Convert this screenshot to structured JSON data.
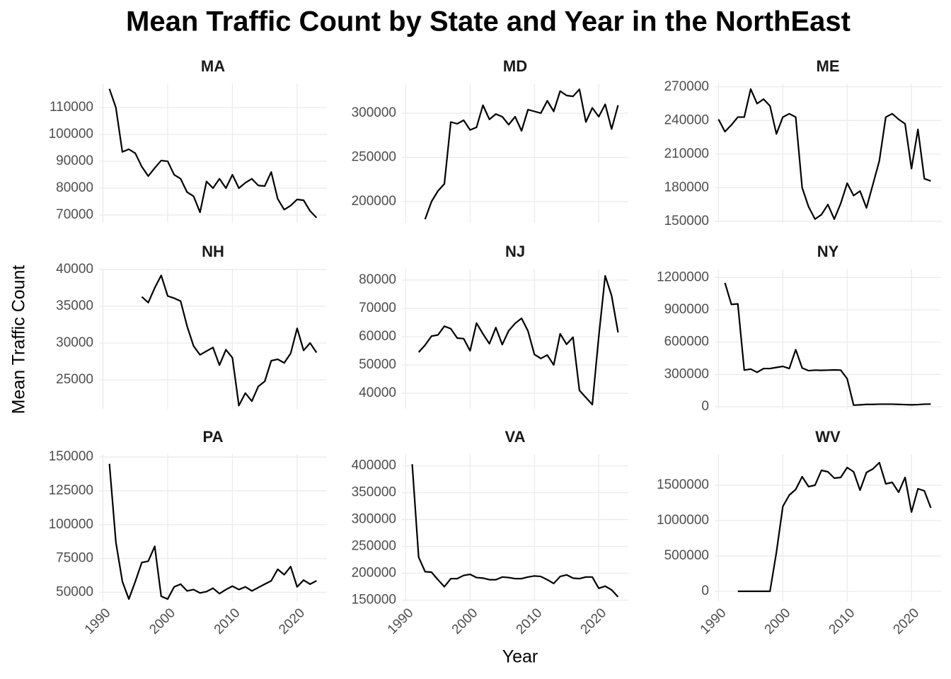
{
  "title": "Mean Traffic Count by State and Year in the NorthEast",
  "xlabel": "Year",
  "ylabel": "Mean Traffic Count",
  "xlim": [
    1989.4,
    2024.6
  ],
  "xticks": [
    1990,
    2000,
    2010,
    2020
  ],
  "grid": true,
  "chart_data": [
    {
      "type": "line",
      "title": "MA",
      "color": "#000000",
      "x": [
        1991,
        1992,
        1993,
        1994,
        1995,
        1996,
        1997,
        1998,
        1999,
        2000,
        2001,
        2002,
        2003,
        2004,
        2005,
        2006,
        2007,
        2008,
        2009,
        2010,
        2011,
        2012,
        2013,
        2014,
        2015,
        2016,
        2017,
        2018,
        2019,
        2020,
        2021,
        2022,
        2023
      ],
      "values": [
        117000,
        110000,
        93500,
        94500,
        93000,
        88000,
        84500,
        87500,
        90300,
        90000,
        85000,
        83500,
        78500,
        77000,
        71000,
        82500,
        80000,
        83500,
        80000,
        85000,
        80000,
        82000,
        83500,
        81000,
        80800,
        86000,
        76000,
        72000,
        73500,
        75800,
        75500,
        71500,
        69000
      ],
      "ylim": [
        67100,
        119000
      ],
      "yticks": [
        70000,
        80000,
        90000,
        100000,
        110000
      ]
    },
    {
      "type": "line",
      "title": "MD",
      "color": "#000000",
      "x": [
        1993,
        1994,
        1995,
        1996,
        1997,
        1998,
        1999,
        2000,
        2001,
        2002,
        2003,
        2004,
        2005,
        2006,
        2007,
        2008,
        2009,
        2010,
        2011,
        2012,
        2013,
        2014,
        2015,
        2016,
        2017,
        2018,
        2019,
        2020,
        2021,
        2022,
        2023
      ],
      "values": [
        180000,
        200000,
        212000,
        220000,
        290000,
        288000,
        292000,
        281000,
        284000,
        309000,
        293000,
        299000,
        296000,
        287000,
        296000,
        280000,
        304000,
        302000,
        300000,
        314000,
        302000,
        325000,
        320000,
        319000,
        327000,
        290000,
        306000,
        296000,
        310000,
        282000,
        309000
      ],
      "ylim": [
        176000,
        333600
      ],
      "yticks": [
        200000,
        250000,
        300000
      ]
    },
    {
      "type": "line",
      "title": "ME",
      "color": "#000000",
      "x": [
        1990,
        1991,
        1992,
        1993,
        1994,
        1995,
        1996,
        1997,
        1998,
        1999,
        2000,
        2001,
        2002,
        2003,
        2004,
        2005,
        2006,
        2007,
        2008,
        2009,
        2010,
        2011,
        2012,
        2013,
        2014,
        2015,
        2016,
        2017,
        2018,
        2019,
        2020,
        2021,
        2022,
        2023
      ],
      "values": [
        241000,
        230000,
        236000,
        243000,
        243000,
        268000,
        255000,
        259000,
        253000,
        228000,
        243000,
        246000,
        243000,
        180000,
        163000,
        152000,
        156000,
        165000,
        152000,
        166000,
        184000,
        173000,
        177000,
        162000,
        183000,
        204000,
        243000,
        246000,
        241000,
        237000,
        197000,
        232000,
        188000,
        186000
      ],
      "ylim": [
        148700,
        273000
      ],
      "yticks": [
        150000,
        180000,
        210000,
        240000,
        270000
      ]
    },
    {
      "type": "line",
      "title": "NH",
      "color": "#000000",
      "x": [
        1996,
        1997,
        1998,
        1999,
        2000,
        2001,
        2002,
        2003,
        2004,
        2005,
        2006,
        2007,
        2008,
        2009,
        2010,
        2011,
        2012,
        2013,
        2014,
        2015,
        2016,
        2017,
        2018,
        2019,
        2020,
        2021,
        2022,
        2023
      ],
      "values": [
        36300,
        35500,
        37500,
        39200,
        36400,
        36100,
        35700,
        32300,
        29600,
        28400,
        28900,
        29400,
        27000,
        29100,
        28000,
        21500,
        23200,
        22100,
        24100,
        24800,
        27600,
        27800,
        27300,
        28600,
        32000,
        29000,
        30000,
        28700
      ],
      "ylim": [
        21060,
        40100
      ],
      "yticks": [
        25000,
        30000,
        35000,
        40000
      ]
    },
    {
      "type": "line",
      "title": "NJ",
      "color": "#000000",
      "x": [
        1992,
        1993,
        1994,
        1995,
        1996,
        1997,
        1998,
        1999,
        2000,
        2001,
        2002,
        2003,
        2004,
        2005,
        2006,
        2007,
        2008,
        2009,
        2010,
        2011,
        2012,
        2013,
        2014,
        2015,
        2016,
        2017,
        2018,
        2019,
        2020,
        2021,
        2022,
        2023
      ],
      "values": [
        54500,
        57000,
        60200,
        60600,
        63700,
        62800,
        59500,
        59300,
        55000,
        64800,
        61000,
        57500,
        63200,
        57200,
        62100,
        64700,
        66500,
        62000,
        53700,
        52300,
        53500,
        50000,
        61000,
        57300,
        59800,
        41000,
        38500,
        36000,
        60000,
        81500,
        74500,
        61500
      ],
      "ylim": [
        34500,
        84000
      ],
      "yticks": [
        40000,
        50000,
        60000,
        70000,
        80000
      ]
    },
    {
      "type": "line",
      "title": "NY",
      "color": "#000000",
      "x": [
        1991,
        1992,
        1993,
        1994,
        1995,
        1996,
        1997,
        1998,
        1999,
        2000,
        2001,
        2002,
        2003,
        2004,
        2005,
        2006,
        2007,
        2008,
        2009,
        2010,
        2011,
        2012,
        2013,
        2014,
        2015,
        2016,
        2017,
        2018,
        2019,
        2020,
        2021,
        2022,
        2023
      ],
      "values": [
        1150000,
        950000,
        955000,
        340000,
        350000,
        320000,
        355000,
        355000,
        365000,
        375000,
        355000,
        530000,
        360000,
        335000,
        340000,
        338000,
        340000,
        342000,
        340000,
        260000,
        15000,
        18000,
        22000,
        22000,
        24000,
        24000,
        24000,
        22000,
        20000,
        18000,
        20000,
        24000,
        25000
      ],
      "ylim": [
        -19000,
        1281000
      ],
      "yticks": [
        0,
        300000,
        600000,
        900000,
        1200000
      ]
    },
    {
      "type": "line",
      "title": "PA",
      "color": "#000000",
      "x": [
        1991,
        1992,
        1993,
        1994,
        1995,
        1996,
        1997,
        1998,
        1999,
        2000,
        2001,
        2002,
        2003,
        2004,
        2005,
        2006,
        2007,
        2008,
        2009,
        2010,
        2011,
        2012,
        2013,
        2014,
        2015,
        2016,
        2017,
        2018,
        2019,
        2020,
        2021,
        2022,
        2023
      ],
      "values": [
        145000,
        87000,
        58000,
        45000,
        58000,
        72000,
        73000,
        84000,
        47000,
        45000,
        54000,
        56000,
        51000,
        52000,
        49500,
        50500,
        53000,
        49000,
        52000,
        54500,
        52000,
        54000,
        51000,
        53500,
        56000,
        58500,
        67000,
        63000,
        69000,
        54000,
        59000,
        56000,
        58500
      ],
      "ylim": [
        43400,
        152200
      ],
      "yticks": [
        50000,
        75000,
        100000,
        125000,
        150000
      ]
    },
    {
      "type": "line",
      "title": "VA",
      "color": "#000000",
      "x": [
        1991,
        1992,
        1993,
        1994,
        1995,
        1996,
        1997,
        1998,
        1999,
        2000,
        2001,
        2002,
        2003,
        2004,
        2005,
        2006,
        2007,
        2008,
        2009,
        2010,
        2011,
        2012,
        2013,
        2014,
        2015,
        2016,
        2017,
        2018,
        2019,
        2020,
        2021,
        2022,
        2023
      ],
      "values": [
        403000,
        230000,
        203000,
        202000,
        188000,
        175000,
        190000,
        190000,
        196000,
        198000,
        192000,
        191000,
        188000,
        188000,
        193000,
        192000,
        190000,
        190000,
        193000,
        195000,
        194000,
        188000,
        181000,
        194000,
        197000,
        191000,
        190000,
        193000,
        193000,
        172000,
        176000,
        169000,
        156000
      ],
      "ylim": [
        148000,
        421900
      ],
      "yticks": [
        150000,
        200000,
        250000,
        300000,
        350000,
        400000
      ]
    },
    {
      "type": "line",
      "title": "WV",
      "color": "#000000",
      "x": [
        1993,
        1994,
        1995,
        1996,
        1997,
        1998,
        1999,
        2000,
        2001,
        2002,
        2003,
        2004,
        2005,
        2006,
        2007,
        2008,
        2009,
        2010,
        2011,
        2012,
        2013,
        2014,
        2015,
        2016,
        2017,
        2018,
        2019,
        2020,
        2021,
        2022,
        2023
      ],
      "values": [
        0,
        0,
        0,
        0,
        0,
        0,
        550000,
        1200000,
        1360000,
        1440000,
        1620000,
        1480000,
        1500000,
        1710000,
        1690000,
        1600000,
        1610000,
        1750000,
        1690000,
        1430000,
        1680000,
        1730000,
        1820000,
        1520000,
        1540000,
        1400000,
        1610000,
        1120000,
        1450000,
        1420000,
        1180000
      ],
      "ylim": [
        -140000,
        1940000
      ],
      "yticks": [
        0,
        500000,
        1000000,
        1500000
      ]
    }
  ]
}
